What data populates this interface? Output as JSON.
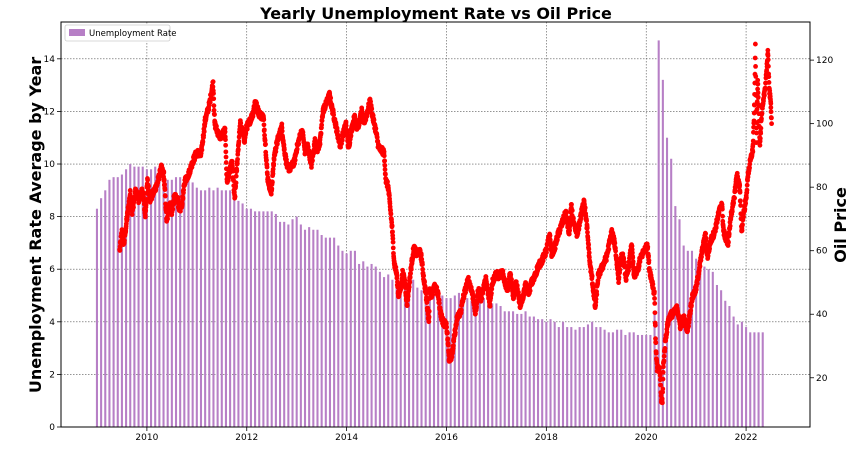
{
  "chart_data": {
    "type": "bar+scatter",
    "title": "Yearly Unemployment Rate vs Oil Price",
    "ylabel": "Unemployment Rate Average by Year",
    "y2label": "Oil Price",
    "legend": {
      "placement": "top-left",
      "entries": [
        "Unemployment Rate"
      ]
    },
    "grid": true,
    "xlim": [
      2008.28,
      2023.28
    ],
    "ylim": [
      0,
      15.4
    ],
    "y2lim": [
      4.5,
      132
    ],
    "x_ticks": [
      2010,
      2012,
      2014,
      2016,
      2018,
      2020,
      2022
    ],
    "x_tick_labels": [
      "2010",
      "2012",
      "2014",
      "2016",
      "2018",
      "2020",
      "2022"
    ],
    "y_ticks": [
      0,
      2,
      4,
      6,
      8,
      10,
      12,
      14
    ],
    "y_tick_labels": [
      "0",
      "2",
      "4",
      "6",
      "8",
      "10",
      "12",
      "14"
    ],
    "y2_ticks": [
      20,
      40,
      60,
      80,
      100,
      120
    ],
    "y2_tick_labels": [
      "20",
      "40",
      "60",
      "80",
      "100",
      "120"
    ],
    "colors": {
      "bars": "#b77fc6",
      "points": "#ff0000",
      "grid": "#555555"
    },
    "bar_series": {
      "name": "Unemployment Rate",
      "start": "2009-01",
      "step": "month",
      "values": [
        8.3,
        8.7,
        9.0,
        9.4,
        9.5,
        9.5,
        9.6,
        9.8,
        10.0,
        9.9,
        9.9,
        9.9,
        9.8,
        9.8,
        9.9,
        9.9,
        9.6,
        9.4,
        9.4,
        9.5,
        9.5,
        9.4,
        9.8,
        9.3,
        9.1,
        9.0,
        9.0,
        9.1,
        9.0,
        9.1,
        9.0,
        9.0,
        9.0,
        8.8,
        8.6,
        8.5,
        8.3,
        8.3,
        8.2,
        8.2,
        8.2,
        8.2,
        8.2,
        8.1,
        7.8,
        7.8,
        7.7,
        7.9,
        8.0,
        7.7,
        7.5,
        7.6,
        7.5,
        7.5,
        7.3,
        7.2,
        7.2,
        7.2,
        6.9,
        6.7,
        6.6,
        6.7,
        6.7,
        6.2,
        6.3,
        6.1,
        6.2,
        6.1,
        5.9,
        5.7,
        5.8,
        5.6,
        5.7,
        5.5,
        5.4,
        5.4,
        5.6,
        5.3,
        5.2,
        5.1,
        5.0,
        5.0,
        5.1,
        5.0,
        4.9,
        4.9,
        5.0,
        5.1,
        4.8,
        4.9,
        4.8,
        4.9,
        5.0,
        4.9,
        4.7,
        4.7,
        4.7,
        4.6,
        4.4,
        4.4,
        4.4,
        4.3,
        4.3,
        4.4,
        4.2,
        4.2,
        4.1,
        4.1,
        4.0,
        4.1,
        4.0,
        3.8,
        4.0,
        3.8,
        3.8,
        3.7,
        3.8,
        3.8,
        3.9,
        4.0,
        3.8,
        3.8,
        3.7,
        3.6,
        3.6,
        3.7,
        3.7,
        3.5,
        3.6,
        3.6,
        3.5,
        3.5,
        3.5,
        3.5,
        4.4,
        14.7,
        13.2,
        11.0,
        10.2,
        8.4,
        7.9,
        6.9,
        6.7,
        6.7,
        6.4,
        6.2,
        6.1,
        6.0,
        5.9,
        5.4,
        5.2,
        4.8,
        4.6,
        4.2,
        3.9,
        4.0,
        3.8,
        3.6,
        3.6,
        3.6,
        3.6
      ]
    },
    "scatter_series": {
      "name": "Oil Price",
      "anchors": [
        [
          "2009-06-15",
          60
        ],
        [
          "2009-07-01",
          66
        ],
        [
          "2009-07-15",
          62
        ],
        [
          "2009-08-10",
          71
        ],
        [
          "2009-09-01",
          78
        ],
        [
          "2009-09-15",
          72
        ],
        [
          "2009-10-10",
          79
        ],
        [
          "2009-11-01",
          76
        ],
        [
          "2009-12-01",
          79
        ],
        [
          "2009-12-20",
          71
        ],
        [
          "2010-01-05",
          82
        ],
        [
          "2010-01-25",
          76
        ],
        [
          "2010-02-15",
          78
        ],
        [
          "2010-03-15",
          81
        ],
        [
          "2010-04-15",
          86
        ],
        [
          "2010-05-03",
          84
        ],
        [
          "2010-05-25",
          69
        ],
        [
          "2010-06-15",
          75
        ],
        [
          "2010-07-01",
          72
        ],
        [
          "2010-07-20",
          77
        ],
        [
          "2010-08-15",
          76
        ],
        [
          "2010-08-25",
          72
        ],
        [
          "2010-09-15",
          75
        ],
        [
          "2010-10-05",
          82
        ],
        [
          "2010-11-01",
          84
        ],
        [
          "2010-12-01",
          88
        ],
        [
          "2010-12-31",
          91
        ],
        [
          "2011-02-01",
          90
        ],
        [
          "2011-03-01",
          101
        ],
        [
          "2011-04-01",
          106
        ],
        [
          "2011-04-29",
          113
        ],
        [
          "2011-05-10",
          100
        ],
        [
          "2011-05-25",
          98
        ],
        [
          "2011-06-15",
          96
        ],
        [
          "2011-07-01",
          96
        ],
        [
          "2011-07-25",
          98
        ],
        [
          "2011-08-08",
          82
        ],
        [
          "2011-08-25",
          84
        ],
        [
          "2011-09-15",
          88
        ],
        [
          "2011-10-04",
          76
        ],
        [
          "2011-10-31",
          93
        ],
        [
          "2011-11-15",
          100
        ],
        [
          "2011-12-15",
          95
        ],
        [
          "2011-12-31",
          99
        ],
        [
          "2012-01-15",
          100
        ],
        [
          "2012-02-15",
          103
        ],
        [
          "2012-03-01",
          107
        ],
        [
          "2012-04-01",
          103
        ],
        [
          "2012-05-01",
          102
        ],
        [
          "2012-05-15",
          94
        ],
        [
          "2012-06-01",
          83
        ],
        [
          "2012-06-28",
          78
        ],
        [
          "2012-07-20",
          90
        ],
        [
          "2012-08-15",
          95
        ],
        [
          "2012-09-14",
          99
        ],
        [
          "2012-10-01",
          92
        ],
        [
          "2012-10-25",
          86
        ],
        [
          "2012-11-15",
          86
        ],
        [
          "2012-12-15",
          88
        ],
        [
          "2012-12-31",
          92
        ],
        [
          "2013-01-31",
          97
        ],
        [
          "2013-02-15",
          97
        ],
        [
          "2013-03-01",
          91
        ],
        [
          "2013-03-20",
          93
        ],
        [
          "2013-04-18",
          87
        ],
        [
          "2013-05-15",
          95
        ],
        [
          "2013-06-01",
          92
        ],
        [
          "2013-06-20",
          94
        ],
        [
          "2013-07-10",
          104
        ],
        [
          "2013-08-01",
          106
        ],
        [
          "2013-08-28",
          109
        ],
        [
          "2013-09-15",
          105
        ],
        [
          "2013-10-01",
          102
        ],
        [
          "2013-10-25",
          97
        ],
        [
          "2013-11-15",
          93
        ],
        [
          "2013-12-01",
          96
        ],
        [
          "2013-12-27",
          100
        ],
        [
          "2014-01-15",
          92
        ],
        [
          "2014-02-01",
          97
        ],
        [
          "2014-02-28",
          102
        ],
        [
          "2014-03-15",
          99
        ],
        [
          "2014-04-01",
          100
        ],
        [
          "2014-04-20",
          104
        ],
        [
          "2014-05-01",
          100
        ],
        [
          "2014-05-20",
          102
        ],
        [
          "2014-06-20",
          107
        ],
        [
          "2014-07-10",
          102
        ],
        [
          "2014-07-31",
          98
        ],
        [
          "2014-08-20",
          93
        ],
        [
          "2014-09-01",
          92
        ],
        [
          "2014-09-30",
          91
        ],
        [
          "2014-10-15",
          82
        ],
        [
          "2014-11-01",
          80
        ],
        [
          "2014-11-28",
          68
        ],
        [
          "2014-12-15",
          56
        ],
        [
          "2014-12-31",
          53
        ],
        [
          "2015-01-15",
          46
        ],
        [
          "2015-01-30",
          48
        ],
        [
          "2015-02-15",
          53
        ],
        [
          "2015-03-01",
          50
        ],
        [
          "2015-03-17",
          43
        ],
        [
          "2015-04-01",
          49
        ],
        [
          "2015-04-20",
          56
        ],
        [
          "2015-05-05",
          61
        ],
        [
          "2015-05-25",
          59
        ],
        [
          "2015-06-15",
          60
        ],
        [
          "2015-06-30",
          58
        ],
        [
          "2015-07-15",
          52
        ],
        [
          "2015-08-01",
          47
        ],
        [
          "2015-08-24",
          38
        ],
        [
          "2015-08-31",
          48
        ],
        [
          "2015-09-15",
          46
        ],
        [
          "2015-10-10",
          49
        ],
        [
          "2015-11-01",
          46
        ],
        [
          "2015-11-20",
          40
        ],
        [
          "2015-12-10",
          37
        ],
        [
          "2015-12-31",
          37
        ],
        [
          "2016-01-10",
          32
        ],
        [
          "2016-01-20",
          26
        ],
        [
          "2016-02-11",
          27
        ],
        [
          "2016-03-01",
          34
        ],
        [
          "2016-03-20",
          39
        ],
        [
          "2016-04-15",
          41
        ],
        [
          "2016-05-01",
          45
        ],
        [
          "2016-06-08",
          51
        ],
        [
          "2016-06-30",
          48
        ],
        [
          "2016-07-15",
          45
        ],
        [
          "2016-08-01",
          40
        ],
        [
          "2016-08-20",
          48
        ],
        [
          "2016-09-10",
          45
        ],
        [
          "2016-10-15",
          51
        ],
        [
          "2016-11-14",
          43
        ],
        [
          "2016-12-01",
          50
        ],
        [
          "2016-12-31",
          53
        ],
        [
          "2017-01-15",
          52
        ],
        [
          "2017-02-15",
          53
        ],
        [
          "2017-03-10",
          49
        ],
        [
          "2017-03-25",
          48
        ],
        [
          "2017-04-10",
          53
        ],
        [
          "2017-05-05",
          45
        ],
        [
          "2017-05-25",
          50
        ],
        [
          "2017-06-21",
          43
        ],
        [
          "2017-07-10",
          45
        ],
        [
          "2017-08-01",
          49
        ],
        [
          "2017-08-25",
          47
        ],
        [
          "2017-09-15",
          50
        ],
        [
          "2017-10-01",
          51
        ],
        [
          "2017-11-01",
          55
        ],
        [
          "2017-12-01",
          57
        ],
        [
          "2017-12-31",
          60
        ],
        [
          "2018-01-25",
          65
        ],
        [
          "2018-02-09",
          59
        ],
        [
          "2018-03-01",
          61
        ],
        [
          "2018-03-25",
          65
        ],
        [
          "2018-04-20",
          68
        ],
        [
          "2018-05-22",
          72
        ],
        [
          "2018-06-15",
          65
        ],
        [
          "2018-07-01",
          74
        ],
        [
          "2018-07-20",
          68
        ],
        [
          "2018-08-15",
          65
        ],
        [
          "2018-09-01",
          69
        ],
        [
          "2018-10-03",
          76
        ],
        [
          "2018-10-25",
          67
        ],
        [
          "2018-11-15",
          56
        ],
        [
          "2018-12-01",
          51
        ],
        [
          "2018-12-24",
          42
        ],
        [
          "2019-01-15",
          52
        ],
        [
          "2019-02-15",
          55
        ],
        [
          "2019-03-15",
          58
        ],
        [
          "2019-04-23",
          66
        ],
        [
          "2019-05-15",
          62
        ],
        [
          "2019-06-12",
          51
        ],
        [
          "2019-06-30",
          58
        ],
        [
          "2019-07-15",
          58
        ],
        [
          "2019-08-07",
          51
        ],
        [
          "2019-08-25",
          55
        ],
        [
          "2019-09-16",
          62
        ],
        [
          "2019-10-03",
          52
        ],
        [
          "2019-10-31",
          54
        ],
        [
          "2019-11-15",
          57
        ],
        [
          "2019-12-15",
          60
        ],
        [
          "2019-12-31",
          61
        ],
        [
          "2020-01-07",
          63
        ],
        [
          "2020-01-25",
          54
        ],
        [
          "2020-02-15",
          50
        ],
        [
          "2020-03-01",
          46
        ],
        [
          "2020-03-09",
          31
        ],
        [
          "2020-03-20",
          23
        ],
        [
          "2020-04-10",
          22
        ],
        [
          "2020-04-21",
          12
        ],
        [
          "2020-04-28",
          13
        ],
        [
          "2020-05-05",
          24
        ],
        [
          "2020-05-20",
          32
        ],
        [
          "2020-06-10",
          38
        ],
        [
          "2020-06-30",
          40
        ],
        [
          "2020-07-15",
          40
        ],
        [
          "2020-08-15",
          42
        ],
        [
          "2020-09-08",
          36
        ],
        [
          "2020-10-01",
          39
        ],
        [
          "2020-10-30",
          35
        ],
        [
          "2020-11-15",
          40
        ],
        [
          "2020-12-01",
          45
        ],
        [
          "2020-12-31",
          48
        ],
        [
          "2021-01-15",
          52
        ],
        [
          "2021-02-15",
          60
        ],
        [
          "2021-03-08",
          65
        ],
        [
          "2021-03-23",
          58
        ],
        [
          "2021-04-15",
          63
        ],
        [
          "2021-05-15",
          66
        ],
        [
          "2021-06-15",
          72
        ],
        [
          "2021-07-06",
          75
        ],
        [
          "2021-07-19",
          66
        ],
        [
          "2021-08-20",
          62
        ],
        [
          "2021-09-15",
          72
        ],
        [
          "2021-10-01",
          75
        ],
        [
          "2021-10-25",
          84
        ],
        [
          "2021-11-15",
          80
        ],
        [
          "2021-11-30",
          66
        ],
        [
          "2021-12-10",
          71
        ],
        [
          "2021-12-31",
          76
        ],
        [
          "2022-01-15",
          84
        ],
        [
          "2022-02-01",
          88
        ],
        [
          "2022-02-20",
          92
        ],
        [
          "2022-03-01",
          105
        ],
        [
          "2022-03-08",
          124
        ],
        [
          "2022-03-16",
          95
        ],
        [
          "2022-03-25",
          113
        ],
        [
          "2022-04-11",
          94
        ],
        [
          "2022-04-25",
          104
        ],
        [
          "2022-05-01",
          105
        ],
        [
          "2022-05-20",
          112
        ],
        [
          "2022-06-08",
          122
        ],
        [
          "2022-06-20",
          110
        ],
        [
          "2022-06-30",
          106
        ],
        [
          "2022-07-05",
          100
        ]
      ]
    }
  }
}
